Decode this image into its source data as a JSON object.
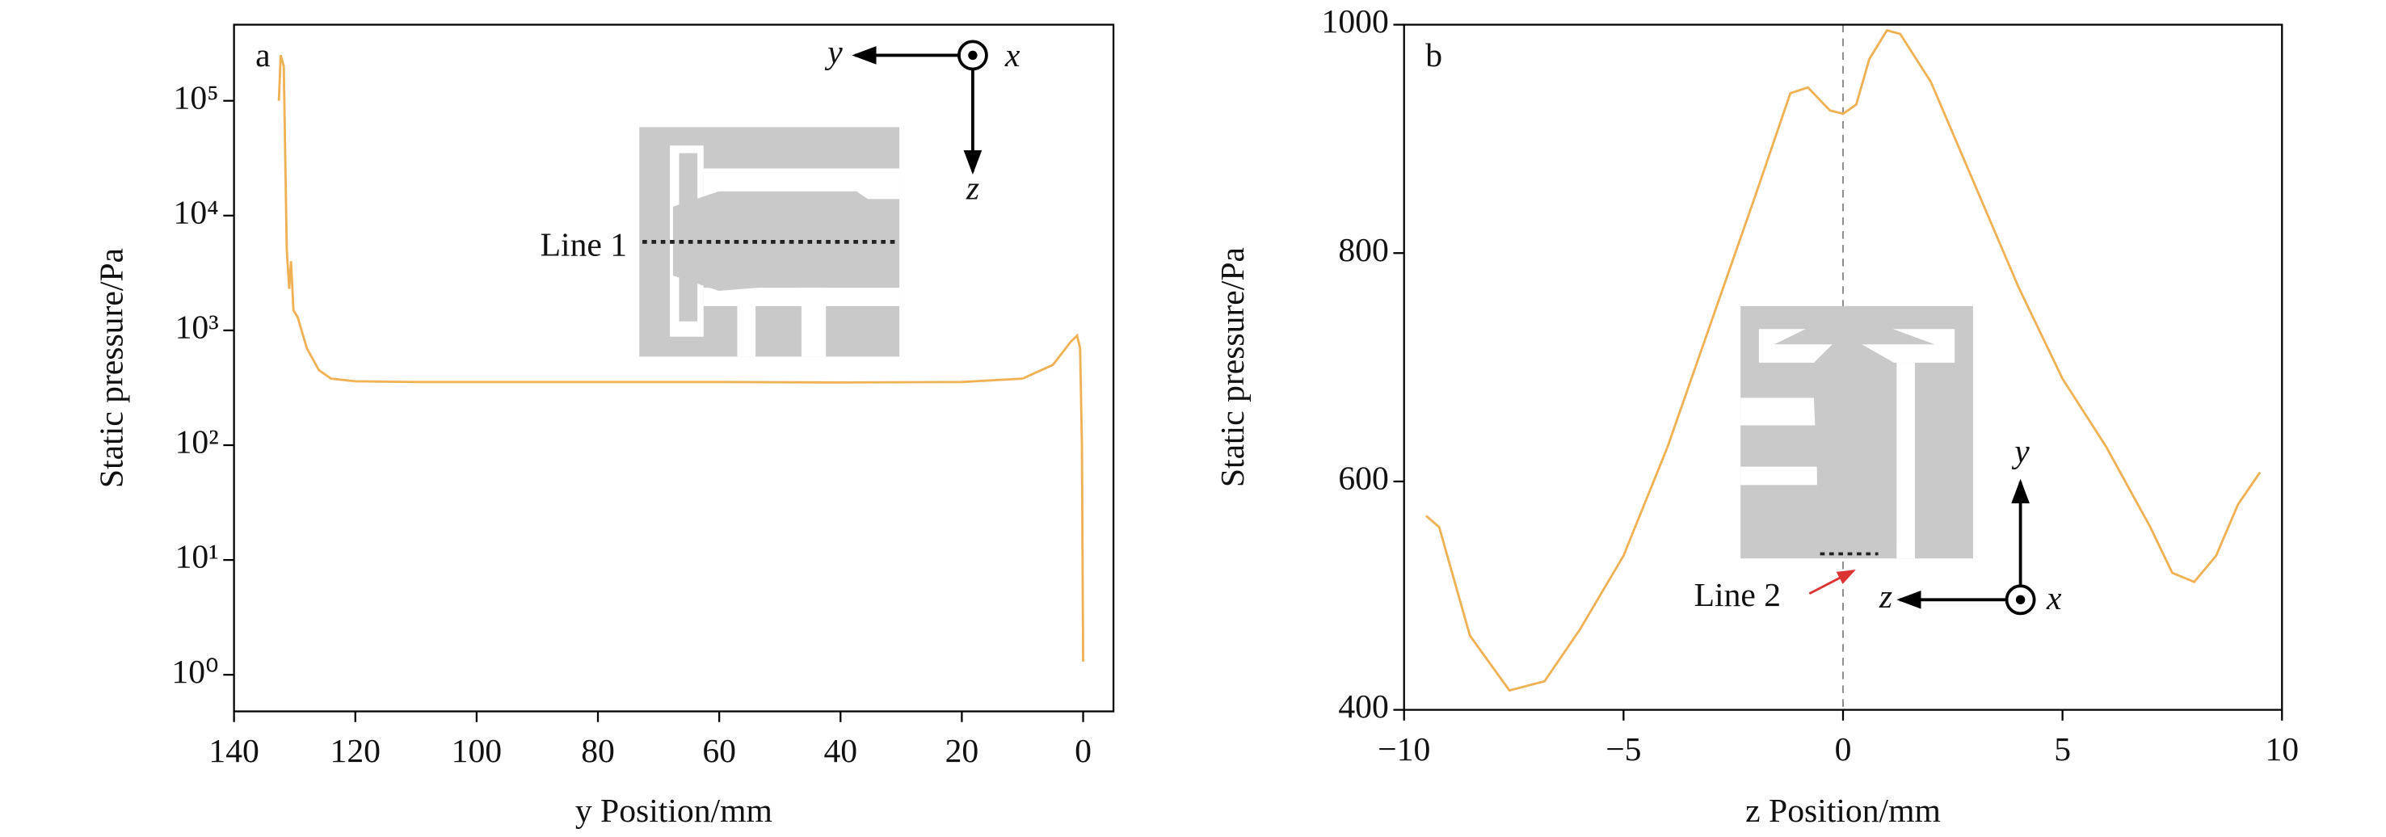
{
  "chart_data": [
    {
      "type": "line",
      "panel": "a",
      "ylabel": "Static pressure/Pa",
      "xlabel": "y Position/mm",
      "color": "#f0b154",
      "yscale": "log",
      "xlim": [
        140,
        -5
      ],
      "xticks": [
        140,
        120,
        100,
        80,
        60,
        40,
        20,
        0
      ],
      "ylim": [
        0.48,
        460000
      ],
      "yticks": [
        {
          "value": 1,
          "label": "10⁰"
        },
        {
          "value": 10,
          "label": "10¹"
        },
        {
          "value": 100,
          "label": "10²"
        },
        {
          "value": 1000,
          "label": "10³"
        },
        {
          "value": 10000,
          "label": "10⁴"
        },
        {
          "value": 100000,
          "label": "10⁵"
        }
      ],
      "x": [
        132.6,
        132.3,
        131.8,
        131.3,
        130.9,
        130.6,
        130.2,
        129.5,
        128,
        126,
        124,
        120,
        110,
        100,
        80,
        60,
        40,
        20,
        10,
        5,
        2,
        1,
        0.5,
        0.2,
        0
      ],
      "values": [
        100000,
        250000,
        200000,
        5000,
        2300,
        4000,
        1500,
        1300,
        700,
        450,
        380,
        360,
        355,
        355,
        355,
        355,
        352,
        355,
        380,
        500,
        800,
        900,
        700,
        100,
        1.3
      ],
      "inset_labels": {
        "line": "Line 1",
        "axis_h": "y",
        "axis_out": "x",
        "axis_v": "z"
      }
    },
    {
      "type": "line",
      "panel": "b",
      "ylabel": "Static pressure/Pa",
      "xlabel": "z Position/mm",
      "color": "#f0b154",
      "yscale": "linear",
      "xlim": [
        -10,
        10
      ],
      "xticks": [
        {
          "value": -10,
          "label": "−10"
        },
        {
          "value": -5,
          "label": "−5"
        },
        0,
        5,
        10
      ],
      "ylim": [
        400,
        1000
      ],
      "yticks": [
        400,
        600,
        800,
        1000
      ],
      "reference_line_x": 0,
      "x": [
        -9.5,
        -9.2,
        -8.5,
        -7.6,
        -6.8,
        -6,
        -5,
        -4,
        -3,
        -2,
        -1.2,
        -0.8,
        -0.3,
        0,
        0.3,
        0.6,
        1.0,
        1.3,
        2,
        3,
        4,
        5,
        6,
        7,
        7.5,
        8,
        8.5,
        9,
        9.5
      ],
      "values": [
        570,
        560,
        465,
        417,
        425,
        470,
        535,
        630,
        740,
        850,
        940,
        945,
        925,
        922,
        930,
        970,
        995,
        992,
        950,
        860,
        770,
        690,
        630,
        560,
        520,
        512,
        535,
        580,
        608
      ],
      "inset_labels": {
        "line": "Line 2",
        "axis_h": "z",
        "axis_out": "x",
        "axis_v": "y"
      }
    }
  ]
}
